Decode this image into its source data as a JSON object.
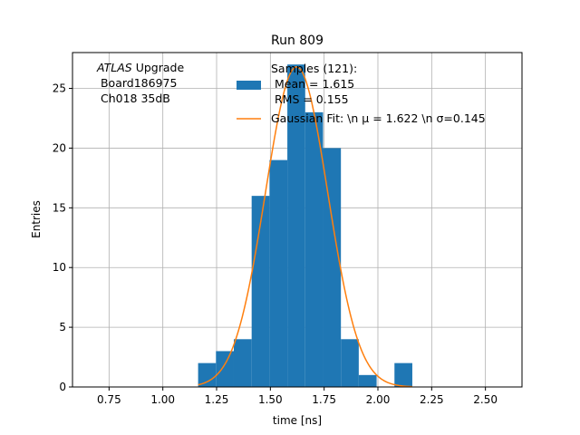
{
  "chart_data": {
    "type": "bar",
    "title": "Run 809",
    "xlabel": "time [ns]",
    "ylabel": "Entries",
    "xlim": [
      0.58,
      2.67
    ],
    "ylim": [
      0,
      28
    ],
    "grid": true,
    "x_ticks": [
      "0.75",
      "1.00",
      "1.25",
      "1.50",
      "1.75",
      "2.00",
      "2.25",
      "2.50"
    ],
    "x_tick_values": [
      0.75,
      1.0,
      1.25,
      1.5,
      1.75,
      2.0,
      2.25,
      2.5
    ],
    "y_ticks": [
      "0",
      "5",
      "10",
      "15",
      "20",
      "25"
    ],
    "y_tick_values": [
      0,
      5,
      10,
      15,
      20,
      25
    ],
    "annotation": {
      "italic": "ATLAS",
      "line1_rest": " Upgrade",
      "line2": " Board186975",
      "line3": " Ch018 35dB"
    },
    "legend": {
      "placement": "upper-right",
      "histogram_label_lines": [
        "Samples (121):",
        " Mean = 1.615",
        " RMS = 0.155"
      ],
      "fit_label": "Gaussian Fit: \\n μ = 1.622 \\n σ=0.145"
    },
    "bin_edges": [
      1.164,
      1.247,
      1.33,
      1.413,
      1.496,
      1.579,
      1.662,
      1.745,
      1.828,
      1.911,
      1.994,
      2.077,
      2.16
    ],
    "counts": [
      2,
      3,
      4,
      16,
      19,
      27,
      23,
      20,
      4,
      1,
      0,
      2
    ],
    "fit": {
      "mu": 1.622,
      "sigma": 0.145,
      "amplitude": 26.8,
      "x_range": [
        1.164,
        2.16
      ]
    },
    "colors": {
      "histogram": "#1f77b4",
      "fit": "#ff7f0e",
      "grid": "#b0b0b0"
    }
  }
}
